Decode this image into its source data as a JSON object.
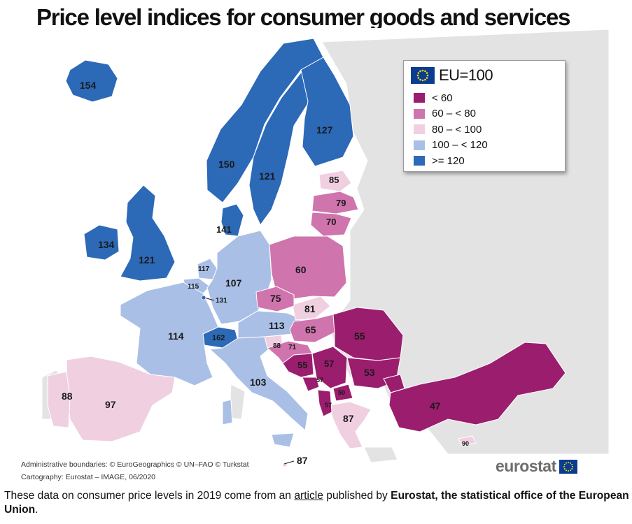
{
  "title": "Price level indices for consumer goods and services",
  "subtitle": "2019",
  "legend": {
    "title": "EU=100",
    "icon": "eu-flag-icon",
    "classes": [
      {
        "label": "< 60",
        "color": "#9b1d6e"
      },
      {
        "label": "60 – < 80",
        "color": "#cf74ad"
      },
      {
        "label": "80 – < 100",
        "color": "#f0cfe0"
      },
      {
        "label": "100 – < 120",
        "color": "#a9bfe6"
      },
      {
        "label": ">= 120",
        "color": "#2c69b7"
      }
    ]
  },
  "map_values": {
    "iceland": "154",
    "norway": "150",
    "sweden": "121",
    "finland": "127",
    "denmark": "141",
    "ireland": "134",
    "united_kingdom": "121",
    "estonia": "85",
    "latvia": "79",
    "lithuania": "70",
    "netherlands": "117",
    "belgium": "115",
    "luxembourg": "131",
    "germany": "107",
    "france": "114",
    "switzerland": "162",
    "poland": "60",
    "czechia": "75",
    "slovakia": "81",
    "austria": "113",
    "hungary": "65",
    "romania": "55",
    "slovenia": "88",
    "croatia": "71",
    "bosnia": "55",
    "serbia": "57",
    "montenegro": "57",
    "north_macedonia": "50",
    "albania": "57",
    "bulgaria": "53",
    "greece": "87",
    "cyprus": "90",
    "turkey": "47",
    "italy": "103",
    "malta": "87",
    "spain": "97",
    "portugal": "88"
  },
  "credits": {
    "line1": "Administrative boundaries: © EuroGeographics © UN–FAO © Turkstat",
    "line2": "Cartography: Eurostat – IMAGE, 06/2020"
  },
  "brand": {
    "word": "eurostat",
    "icon": "eu-flag-icon"
  },
  "caption": {
    "part1": "These data on consumer price levels in 2019 come from an ",
    "link": "article",
    "part2": " published by ",
    "bold": "Eurostat, the statistical office of the European Union",
    "end": "."
  }
}
